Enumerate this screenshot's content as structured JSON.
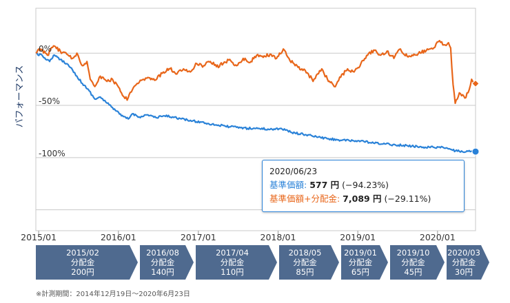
{
  "chart_data": {
    "type": "line",
    "ylabel": "パフォーマンス",
    "ylim": [
      -170,
      43
    ],
    "x_range": [
      "2014-12-19",
      "2020-06-23"
    ],
    "x_ticks": [
      {
        "label": "2015/01",
        "date": "2015-01-01"
      },
      {
        "label": "2016/01",
        "date": "2016-01-01"
      },
      {
        "label": "2017/01",
        "date": "2017-01-01"
      },
      {
        "label": "2018/01",
        "date": "2018-01-01"
      },
      {
        "label": "2019/01",
        "date": "2019-01-01"
      },
      {
        "label": "2020/01",
        "date": "2020-01-01"
      }
    ],
    "y_ticks": [
      {
        "label": "0%",
        "value": 0
      },
      {
        "label": "-50%",
        "value": -50
      },
      {
        "label": "-100%",
        "value": -100
      }
    ],
    "grid": true,
    "series": [
      {
        "name": "基準価額",
        "color": "#2a82d8",
        "points": [
          [
            "2014-12-19",
            0
          ],
          [
            "2015-01-20",
            -3
          ],
          [
            "2015-02-20",
            -8
          ],
          [
            "2015-03-10",
            -2
          ],
          [
            "2015-04-10",
            -6
          ],
          [
            "2015-05-10",
            -10
          ],
          [
            "2015-06-05",
            -16
          ],
          [
            "2015-06-25",
            -22
          ],
          [
            "2015-07-20",
            -29
          ],
          [
            "2015-08-20",
            -36
          ],
          [
            "2015-09-15",
            -44
          ],
          [
            "2015-10-10",
            -42
          ],
          [
            "2015-11-05",
            -47
          ],
          [
            "2015-12-05",
            -52
          ],
          [
            "2016-01-15",
            -60
          ],
          [
            "2016-02-15",
            -63
          ],
          [
            "2016-03-05",
            -58
          ],
          [
            "2016-04-05",
            -61
          ],
          [
            "2016-05-15",
            -59
          ],
          [
            "2016-06-25",
            -62
          ],
          [
            "2016-07-25",
            -60
          ],
          [
            "2016-09-05",
            -61
          ],
          [
            "2016-10-15",
            -63
          ],
          [
            "2016-12-05",
            -65
          ],
          [
            "2017-01-15",
            -66
          ],
          [
            "2017-03-05",
            -68
          ],
          [
            "2017-05-05",
            -70
          ],
          [
            "2017-06-25",
            -71
          ],
          [
            "2017-08-15",
            -72
          ],
          [
            "2017-10-05",
            -72
          ],
          [
            "2017-11-25",
            -73
          ],
          [
            "2018-01-15",
            -72
          ],
          [
            "2018-03-05",
            -76
          ],
          [
            "2018-05-05",
            -78
          ],
          [
            "2018-06-25",
            -80
          ],
          [
            "2018-08-15",
            -82
          ],
          [
            "2018-10-05",
            -83
          ],
          [
            "2018-11-25",
            -84
          ],
          [
            "2019-01-15",
            -84
          ],
          [
            "2019-03-05",
            -86
          ],
          [
            "2019-05-05",
            -87
          ],
          [
            "2019-07-05",
            -88
          ],
          [
            "2019-09-05",
            -89
          ],
          [
            "2019-11-05",
            -90
          ],
          [
            "2020-01-05",
            -90
          ],
          [
            "2020-02-15",
            -91
          ],
          [
            "2020-03-10",
            -93
          ],
          [
            "2020-04-10",
            -94
          ],
          [
            "2020-05-20",
            -94
          ],
          [
            "2020-06-23",
            -94.23
          ]
        ]
      },
      {
        "name": "基準価額+分配金",
        "color": "#e8661a",
        "points": [
          [
            "2014-12-19",
            0
          ],
          [
            "2015-01-10",
            4
          ],
          [
            "2015-02-10",
            -2
          ],
          [
            "2015-03-10",
            7
          ],
          [
            "2015-04-10",
            2
          ],
          [
            "2015-05-10",
            -1
          ],
          [
            "2015-06-05",
            -5
          ],
          [
            "2015-06-25",
            0
          ],
          [
            "2015-07-20",
            -12
          ],
          [
            "2015-08-10",
            -8
          ],
          [
            "2015-08-25",
            -25
          ],
          [
            "2015-09-15",
            -32
          ],
          [
            "2015-10-10",
            -22
          ],
          [
            "2015-11-10",
            -27
          ],
          [
            "2015-12-05",
            -25
          ],
          [
            "2016-01-15",
            -38
          ],
          [
            "2016-02-10",
            -45
          ],
          [
            "2016-03-05",
            -35
          ],
          [
            "2016-04-05",
            -28
          ],
          [
            "2016-05-10",
            -24
          ],
          [
            "2016-06-15",
            -26
          ],
          [
            "2016-07-25",
            -18
          ],
          [
            "2016-08-25",
            -15
          ],
          [
            "2016-09-25",
            -20
          ],
          [
            "2016-10-25",
            -15
          ],
          [
            "2016-11-25",
            -18
          ],
          [
            "2016-12-25",
            -10
          ],
          [
            "2017-01-25",
            -12
          ],
          [
            "2017-02-25",
            -8
          ],
          [
            "2017-03-25",
            -13
          ],
          [
            "2017-04-25",
            -10
          ],
          [
            "2017-05-25",
            -6
          ],
          [
            "2017-06-25",
            -12
          ],
          [
            "2017-07-25",
            -5
          ],
          [
            "2017-08-25",
            -9
          ],
          [
            "2017-09-25",
            -2
          ],
          [
            "2017-10-25",
            -4
          ],
          [
            "2017-11-25",
            -1
          ],
          [
            "2017-12-25",
            -5
          ],
          [
            "2018-01-25",
            4
          ],
          [
            "2018-02-20",
            -5
          ],
          [
            "2018-03-20",
            -12
          ],
          [
            "2018-04-20",
            -15
          ],
          [
            "2018-05-20",
            -20
          ],
          [
            "2018-06-10",
            -27
          ],
          [
            "2018-06-30",
            -20
          ],
          [
            "2018-07-20",
            -15
          ],
          [
            "2018-08-15",
            -25
          ],
          [
            "2018-09-15",
            -32
          ],
          [
            "2018-10-15",
            -23
          ],
          [
            "2018-11-15",
            -15
          ],
          [
            "2018-12-15",
            -18
          ],
          [
            "2019-01-15",
            -10
          ],
          [
            "2019-02-15",
            -2
          ],
          [
            "2019-03-15",
            3
          ],
          [
            "2019-04-15",
            -2
          ],
          [
            "2019-05-15",
            2
          ],
          [
            "2019-06-15",
            -5
          ],
          [
            "2019-07-15",
            4
          ],
          [
            "2019-08-15",
            -3
          ],
          [
            "2019-09-15",
            -1
          ],
          [
            "2019-10-15",
            0
          ],
          [
            "2019-11-15",
            4
          ],
          [
            "2019-12-15",
            5
          ],
          [
            "2020-01-10",
            12
          ],
          [
            "2020-01-30",
            8
          ],
          [
            "2020-02-20",
            10
          ],
          [
            "2020-03-01",
            5
          ],
          [
            "2020-03-12",
            -30
          ],
          [
            "2020-03-22",
            -48
          ],
          [
            "2020-04-10",
            -38
          ],
          [
            "2020-05-05",
            -43
          ],
          [
            "2020-05-25",
            -35
          ],
          [
            "2020-06-05",
            -25
          ],
          [
            "2020-06-23",
            -29.11
          ]
        ]
      }
    ]
  },
  "tooltip": {
    "date": "2020/06/23",
    "nav_label": "基準価額:",
    "nav_value": "577 円",
    "nav_pct": "(−94.23%)",
    "total_label": "基準価額+分配金:",
    "total_value": "7,089 円",
    "total_pct": "(−29.11%)"
  },
  "distributions": [
    {
      "date": "2015/02",
      "label": "分配金",
      "amount": "200円"
    },
    {
      "date": "2016/08",
      "label": "分配金",
      "amount": "140円"
    },
    {
      "date": "2017/04",
      "label": "分配金",
      "amount": "110円"
    },
    {
      "date": "2018/05",
      "label": "分配金",
      "amount": "85円"
    },
    {
      "date": "2019/01",
      "label": "分配金",
      "amount": "65円"
    },
    {
      "date": "2019/10",
      "label": "分配金",
      "amount": "45円"
    },
    {
      "date": "2020/03",
      "label": "分配金",
      "amount": "30円"
    }
  ],
  "colors": {
    "box_fill": "#4f6a8f",
    "grid": "#c8c8c8"
  },
  "footnote": "※計測期間：2014年12月19日〜2020年6月23日"
}
